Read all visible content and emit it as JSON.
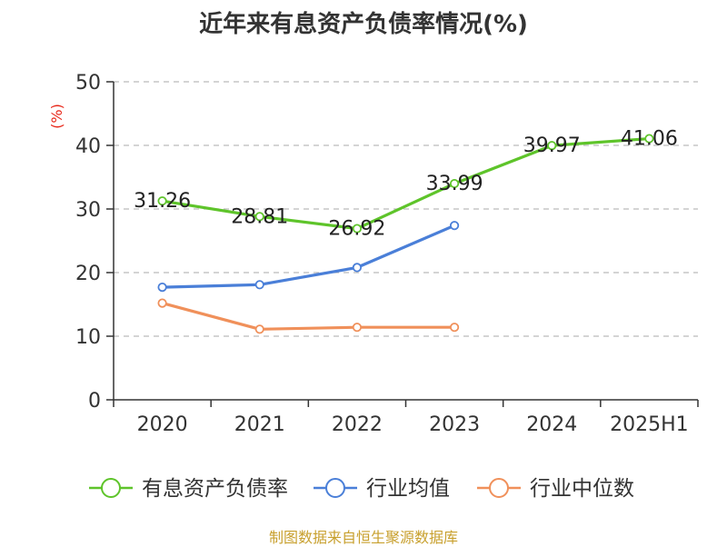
{
  "chart_data": {
    "type": "line",
    "title": "近年来有息资产负债率情况(%)",
    "ylabel": "(%)",
    "xlabel": "",
    "categories": [
      "2020",
      "2021",
      "2022",
      "2023",
      "2024",
      "2025H1"
    ],
    "ylim": [
      0,
      50
    ],
    "yticks": [
      0,
      10,
      20,
      30,
      40,
      50
    ],
    "grid": true,
    "legend_position": "bottom",
    "series": [
      {
        "name": "有息资产负债率",
        "color": "#5ec42a",
        "values": [
          31.26,
          28.81,
          26.92,
          33.99,
          39.97,
          41.06
        ],
        "labels": [
          "31.26",
          "28.81",
          "26.92",
          "33.99",
          "39.97",
          "41.06"
        ]
      },
      {
        "name": "行业均值",
        "color": "#4a7fd8",
        "values": [
          17.7,
          18.1,
          20.8,
          27.4,
          null,
          null
        ]
      },
      {
        "name": "行业中位数",
        "color": "#f0905a",
        "values": [
          15.2,
          11.1,
          11.4,
          11.4,
          null,
          null
        ]
      }
    ]
  },
  "source": "制图数据来自恒生聚源数据库"
}
